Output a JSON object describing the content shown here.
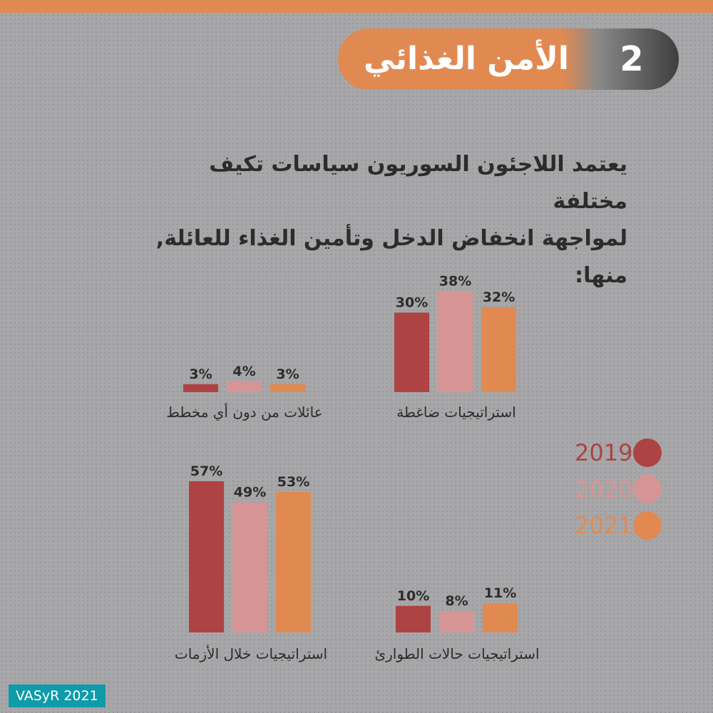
{
  "header": {
    "title": "الأمن الغذائي",
    "number": "2"
  },
  "intro": {
    "line1": "يعتمد اللاجئون السوريون سياسات تكيف مختلفة",
    "line2": "لمواجهة انخفاض الدخل وتأمين الغذاء للعائلة, منها:"
  },
  "legend": [
    {
      "label": "2019",
      "color": "#ad4343"
    },
    {
      "label": "2020",
      "color": "#d69494"
    },
    {
      "label": "2021",
      "color": "#e08a52"
    }
  ],
  "chart_data": [
    {
      "type": "bar",
      "title": "",
      "xlabel": "استراتيجيات ضاغطة",
      "series": [
        {
          "name": "2019",
          "values": [
            30
          ]
        },
        {
          "name": "2020",
          "values": [
            38
          ]
        },
        {
          "name": "2021",
          "values": [
            32
          ]
        }
      ],
      "value_labels": [
        "30%",
        "38%",
        "32%"
      ]
    },
    {
      "type": "bar",
      "title": "",
      "xlabel": "عائلات من دون أي مخطط",
      "series": [
        {
          "name": "2019",
          "values": [
            3
          ]
        },
        {
          "name": "2020",
          "values": [
            4
          ]
        },
        {
          "name": "2021",
          "values": [
            3
          ]
        }
      ],
      "value_labels": [
        "3%",
        "4%",
        "3%"
      ]
    },
    {
      "type": "bar",
      "title": "",
      "xlabel": "استراتيجيات خلال الأزمات",
      "series": [
        {
          "name": "2019",
          "values": [
            57
          ]
        },
        {
          "name": "2020",
          "values": [
            49
          ]
        },
        {
          "name": "2021",
          "values": [
            53
          ]
        }
      ],
      "value_labels": [
        "57%",
        "49%",
        "53%"
      ]
    },
    {
      "type": "bar",
      "title": "",
      "xlabel": "استراتيجيات حالات الطوارئ",
      "series": [
        {
          "name": "2019",
          "values": [
            10
          ]
        },
        {
          "name": "2020",
          "values": [
            8
          ]
        },
        {
          "name": "2021",
          "values": [
            11
          ]
        }
      ],
      "value_labels": [
        "10%",
        "8%",
        "11%"
      ]
    }
  ],
  "footer": {
    "label": "VASyR 2021"
  }
}
